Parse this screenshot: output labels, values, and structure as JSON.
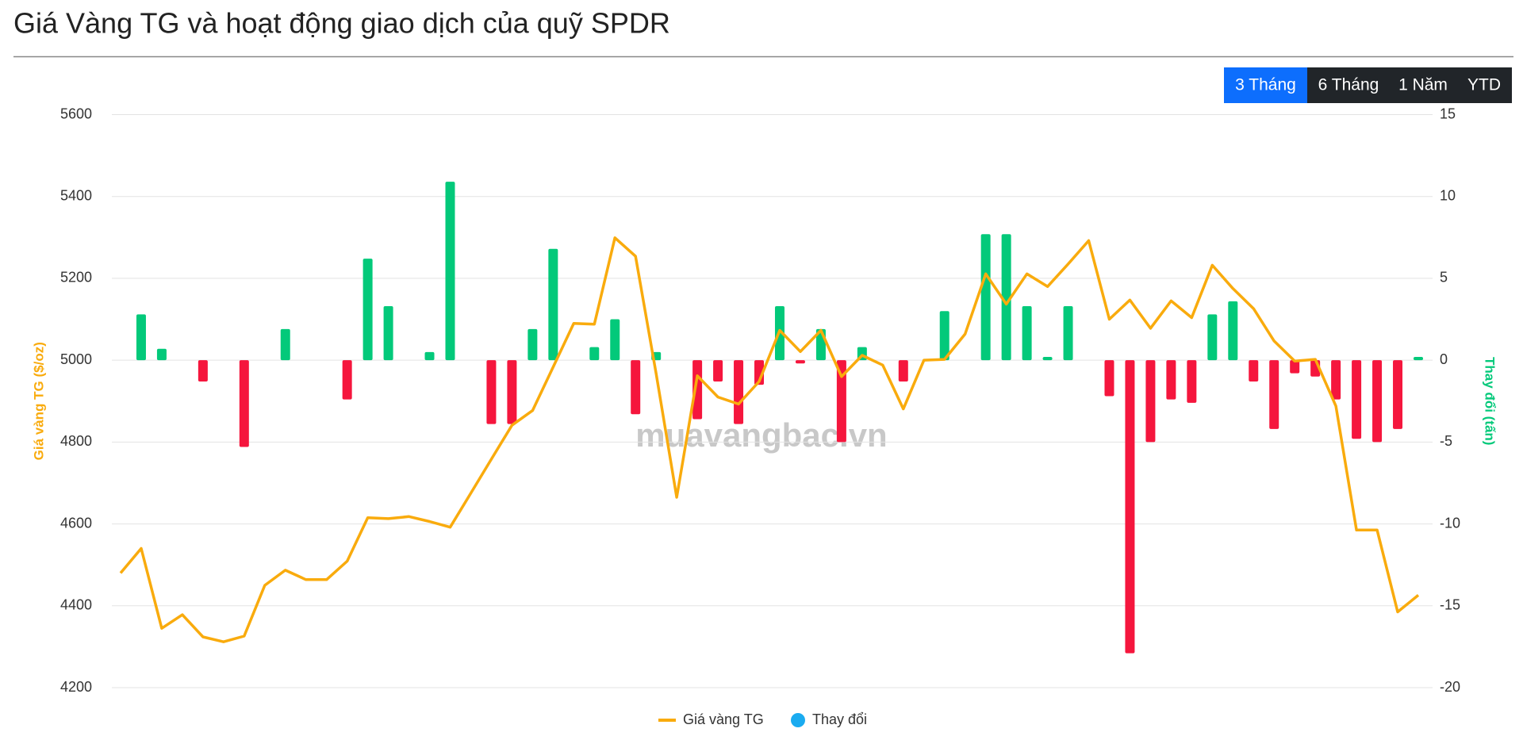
{
  "chart_data": {
    "type": "combo",
    "title": "Giá Vàng TG và hoạt động giao dịch của quỹ SPDR",
    "watermark": "muavangbac.vn",
    "y_label": "Giá vàng TG ($/oz)",
    "y2_label": "Thay đổi (tấn)",
    "ylim": [
      4200,
      5600
    ],
    "yticks": [
      4200,
      4400,
      4600,
      4800,
      5000,
      5200,
      5400,
      5600
    ],
    "y2lim": [
      -20,
      15
    ],
    "y2ticks": [
      -20,
      -15,
      -10,
      -5,
      0,
      5,
      10,
      15
    ],
    "grid": true,
    "legend": "bottom",
    "series": [
      {
        "name": "Giá vàng TG",
        "type": "line",
        "color": "#f9ab0d",
        "values": [
          4480,
          4540,
          4345,
          4378,
          4324,
          4312,
          4326,
          4450,
          4487,
          4464,
          4464,
          4509,
          4615,
          4613,
          4618,
          4606,
          4592,
          4675,
          4758,
          4841,
          4877,
          4983,
          5090,
          5088,
          5299,
          5254,
          4967,
          4665,
          4962,
          4910,
          4893,
          4948,
          5073,
          5021,
          5073,
          4960,
          5012,
          4988,
          4881,
          5000,
          5002,
          5064,
          5211,
          5137,
          5211,
          5180,
          5235,
          5292,
          5100,
          5147,
          5078,
          5145,
          5104,
          5232,
          5175,
          5126,
          5047,
          4998,
          5002,
          4888,
          4585,
          4585,
          4385,
          4426
        ]
      },
      {
        "name": "Thay đổi",
        "type": "bar",
        "axis": "y2",
        "color": "#1aabf0",
        "positive_color": "#03c97a",
        "negative_color": "#f5163d",
        "values": [
          null,
          2.8,
          0.7,
          null,
          -1.3,
          null,
          -5.3,
          null,
          1.9,
          null,
          null,
          -2.4,
          6.2,
          3.3,
          null,
          0.5,
          10.9,
          null,
          -3.9,
          -3.9,
          1.9,
          6.8,
          null,
          0.8,
          2.5,
          -3.3,
          0.5,
          null,
          -3.6,
          -1.3,
          -3.9,
          -1.5,
          3.3,
          -0.2,
          1.9,
          -5.0,
          0.8,
          null,
          -1.3,
          null,
          3.0,
          null,
          7.7,
          7.7,
          3.3,
          0.2,
          3.3,
          null,
          -2.2,
          -17.9,
          -5.0,
          -2.4,
          -2.6,
          2.8,
          3.6,
          -1.3,
          -4.2,
          -0.8,
          -1.0,
          -2.4,
          -4.8,
          -5.0,
          -4.2,
          0.2
        ]
      }
    ]
  },
  "range_buttons": {
    "labels": [
      "3 Tháng",
      "6 Tháng",
      "1 Năm",
      "YTD"
    ],
    "active": 0
  }
}
